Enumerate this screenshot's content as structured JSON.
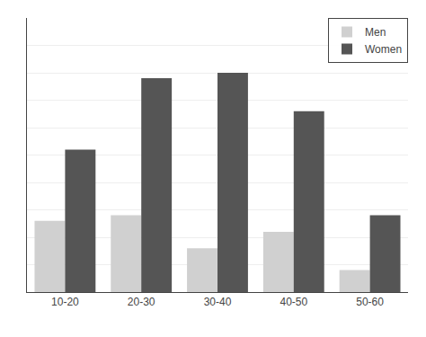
{
  "chart_data": {
    "type": "bar",
    "categories": [
      "10-20",
      "20-30",
      "30-40",
      "40-50",
      "50-60"
    ],
    "series": [
      {
        "name": "Men",
        "color": "#d0d0d0",
        "values": [
          6.5,
          7.0,
          4.0,
          5.5,
          2.0
        ]
      },
      {
        "name": "Women",
        "color": "#555555",
        "values": [
          13.0,
          19.5,
          20.0,
          16.5,
          7.0
        ]
      }
    ],
    "ylim": [
      0,
      25
    ],
    "yticks": [
      0,
      2.5,
      5,
      7.5,
      10,
      12.5,
      15,
      17.5,
      20,
      22.5,
      25
    ],
    "grid": true,
    "legend": "upper right",
    "tick_labels": "x"
  }
}
